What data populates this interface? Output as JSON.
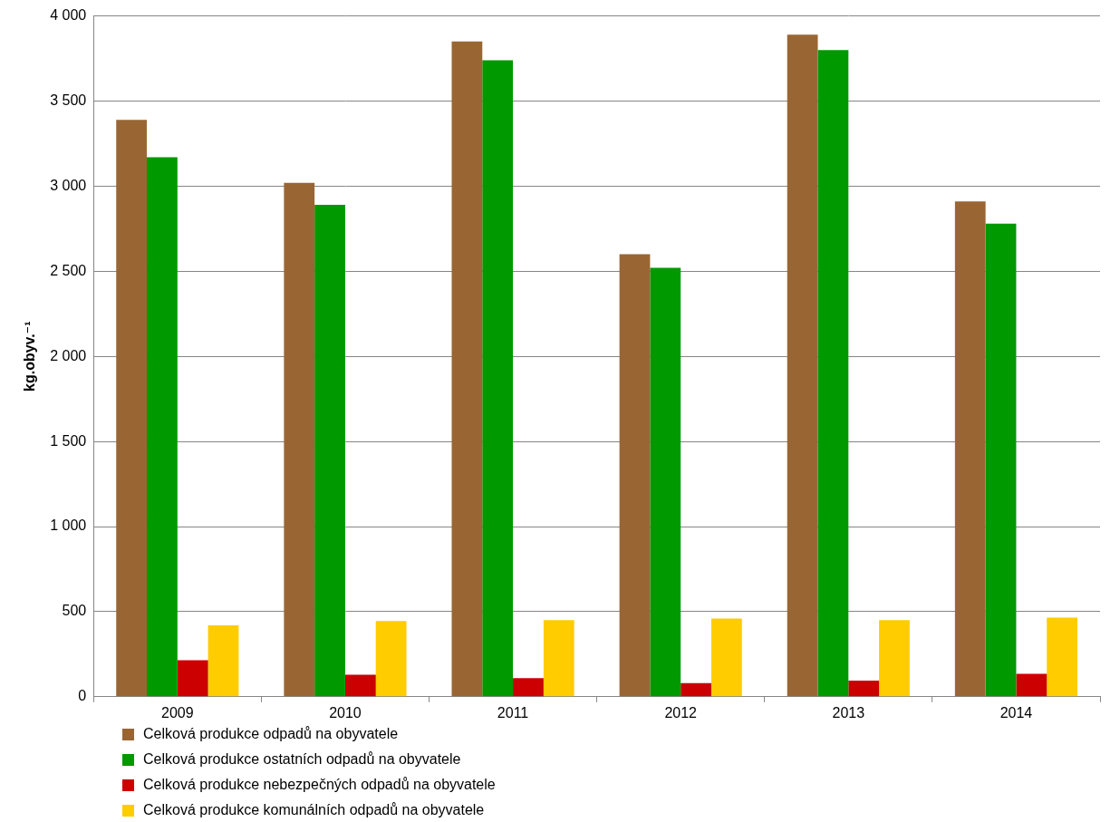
{
  "chart_data": {
    "type": "bar",
    "y_label": "kg.obyv.⁻¹",
    "categories": [
      "2009",
      "2010",
      "2011",
      "2012",
      "2013",
      "2014"
    ],
    "series": [
      {
        "name": "Celková produkce odpadů na obyvatele",
        "color": "#996633",
        "values": [
          3390,
          3020,
          3850,
          2600,
          3890,
          2910
        ]
      },
      {
        "name": "Celková produkce ostatních odpadů na obyvatele",
        "color": "#009900",
        "values": [
          3170,
          2890,
          3740,
          2520,
          3800,
          2780
        ]
      },
      {
        "name": "Celková produkce nebezpečných odpadů na obyvatele",
        "color": "#cc0000",
        "values": [
          215,
          130,
          110,
          80,
          95,
          135
        ]
      },
      {
        "name": "Celková produkce komunálních odpadů na obyvatele",
        "color": "#ffcc00",
        "values": [
          420,
          445,
          450,
          460,
          450,
          465
        ]
      }
    ],
    "ylim": [
      0,
      4000
    ],
    "yticks": [
      0,
      500,
      {
        "value": 1000,
        "label": "1 000"
      },
      {
        "value": 1500,
        "label": "1 500"
      },
      {
        "value": 2000,
        "label": "2 000"
      },
      {
        "value": 2500,
        "label": "2 500"
      },
      {
        "value": 3000,
        "label": "3 000"
      },
      {
        "value": 3500,
        "label": "3 500"
      },
      {
        "value": 4000,
        "label": "4 000"
      }
    ],
    "grid": true,
    "legend": "bottom"
  }
}
